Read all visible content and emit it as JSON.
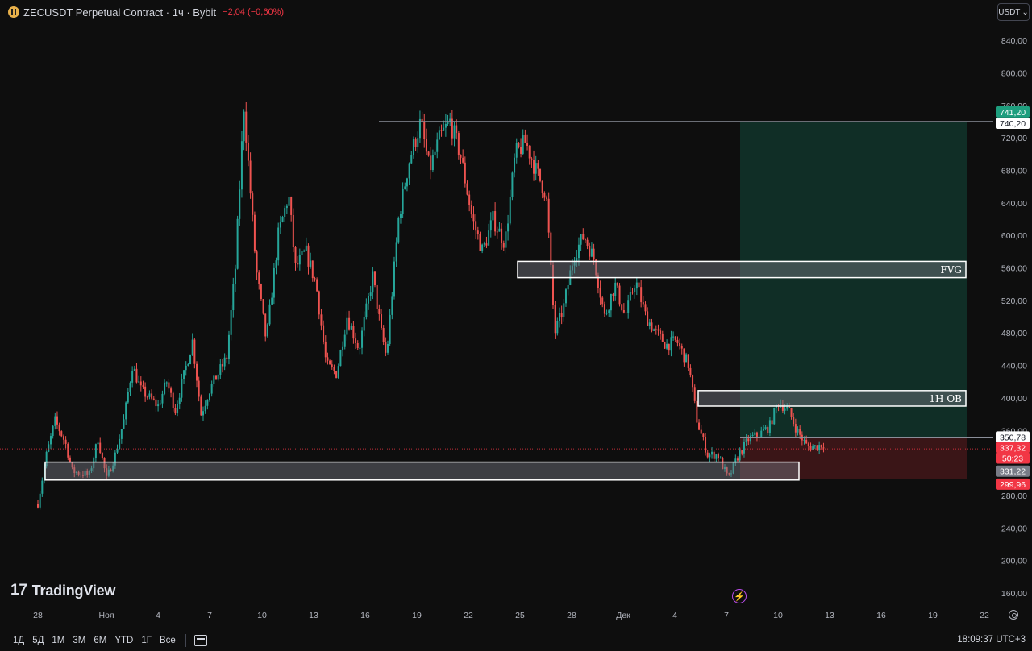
{
  "header": {
    "symbol_line": "ZECUSDT Perpetual Contract · 1ч · Bybit",
    "change": "−2,04 (−0,60%)",
    "currency_button": "USDT"
  },
  "colors": {
    "background": "#0e0e0e",
    "up": "#26a69a",
    "down": "#ef5350",
    "target_zone": "#102e26",
    "stop_zone": "#3a1517",
    "current_price_tag": "#f23645",
    "high_tag": "#1e9e7e"
  },
  "chart_data": {
    "type": "candlestick",
    "timeframe": "1ч",
    "y_ticks": [
      "840,00",
      "800,00",
      "760,00",
      "720,00",
      "680,00",
      "640,00",
      "600,00",
      "560,00",
      "520,00",
      "480,00",
      "440,00",
      "400,00",
      "360,00",
      "280,00",
      "240,00",
      "200,00",
      "160,00"
    ],
    "y_range": [
      150,
      860
    ],
    "x_ticks": [
      "28",
      "Ноя",
      "4",
      "7",
      "10",
      "13",
      "16",
      "19",
      "22",
      "25",
      "28",
      "Дек",
      "4",
      "7",
      "10",
      "13",
      "16",
      "19",
      "22"
    ],
    "price_path_days": [
      [
        0,
        270
      ],
      [
        0.5,
        330
      ],
      [
        1,
        372
      ],
      [
        1.6,
        345
      ],
      [
        2,
        310
      ],
      [
        3,
        305
      ],
      [
        3.5,
        350
      ],
      [
        4,
        300
      ],
      [
        4.5,
        330
      ],
      [
        5,
        372
      ],
      [
        5.5,
        440
      ],
      [
        6,
        410
      ],
      [
        7,
        390
      ],
      [
        7.5,
        420
      ],
      [
        8,
        385
      ],
      [
        9,
        470
      ],
      [
        9.5,
        380
      ],
      [
        10,
        410
      ],
      [
        11,
        450
      ],
      [
        11.5,
        560
      ],
      [
        12,
        760
      ],
      [
        12.7,
        560
      ],
      [
        13.3,
        470
      ],
      [
        14,
        600
      ],
      [
        14.6,
        650
      ],
      [
        15,
        560
      ],
      [
        15.6,
        580
      ],
      [
        16.2,
        540
      ],
      [
        16.8,
        440
      ],
      [
        17.4,
        430
      ],
      [
        18,
        500
      ],
      [
        18.7,
        460
      ],
      [
        19.5,
        550
      ],
      [
        20,
        480
      ],
      [
        20.3,
        450
      ],
      [
        21,
        620
      ],
      [
        21.6,
        690
      ],
      [
        22.3,
        740
      ],
      [
        22.8,
        680
      ],
      [
        23.4,
        720
      ],
      [
        24,
        740
      ],
      [
        24.6,
        700
      ],
      [
        25.3,
        620
      ],
      [
        25.9,
        580
      ],
      [
        26.5,
        620
      ],
      [
        27.2,
        590
      ],
      [
        27.8,
        700
      ],
      [
        28.4,
        715
      ],
      [
        29,
        680
      ],
      [
        29.6,
        650
      ],
      [
        30.1,
        480
      ],
      [
        30.6,
        510
      ],
      [
        31.2,
        575
      ],
      [
        31.8,
        600
      ],
      [
        32.4,
        570
      ],
      [
        33,
        500
      ],
      [
        33.6,
        540
      ],
      [
        34.2,
        500
      ],
      [
        34.8,
        545
      ],
      [
        35.4,
        500
      ],
      [
        36,
        480
      ],
      [
        36.6,
        465
      ],
      [
        37.2,
        470
      ],
      [
        37.9,
        440
      ],
      [
        38.4,
        370
      ],
      [
        39,
        330
      ],
      [
        39.6,
        330
      ],
      [
        40.2,
        300
      ],
      [
        40.8,
        330
      ],
      [
        41.4,
        350
      ],
      [
        42,
        355
      ],
      [
        42.6,
        365
      ],
      [
        43.1,
        395
      ],
      [
        43.7,
        385
      ],
      [
        44.2,
        360
      ],
      [
        44.8,
        340
      ],
      [
        45.3,
        340
      ],
      [
        45.8,
        344
      ]
    ],
    "levels": {
      "current_price": "337,32",
      "countdown": "50:23",
      "high": "741,20",
      "target": "740,20",
      "entry": "350,78",
      "support_label": "331,22",
      "stop": "299,96"
    },
    "zones": [
      {
        "label": "FVG",
        "from": 548,
        "to": 568
      },
      {
        "label": "1H OB",
        "from": 390,
        "to": 409
      },
      {
        "label": "",
        "from": 299,
        "to": 321
      }
    ],
    "position": {
      "entry": 350.78,
      "target": 740.2,
      "stop": 299.96
    }
  },
  "branding": {
    "logo_text": "TradingView"
  },
  "toolbar": {
    "ranges": [
      "1Д",
      "5Д",
      "1М",
      "3М",
      "6М",
      "YTD",
      "1Г",
      "Все"
    ],
    "clock": "18:09:37 UTC+3"
  }
}
